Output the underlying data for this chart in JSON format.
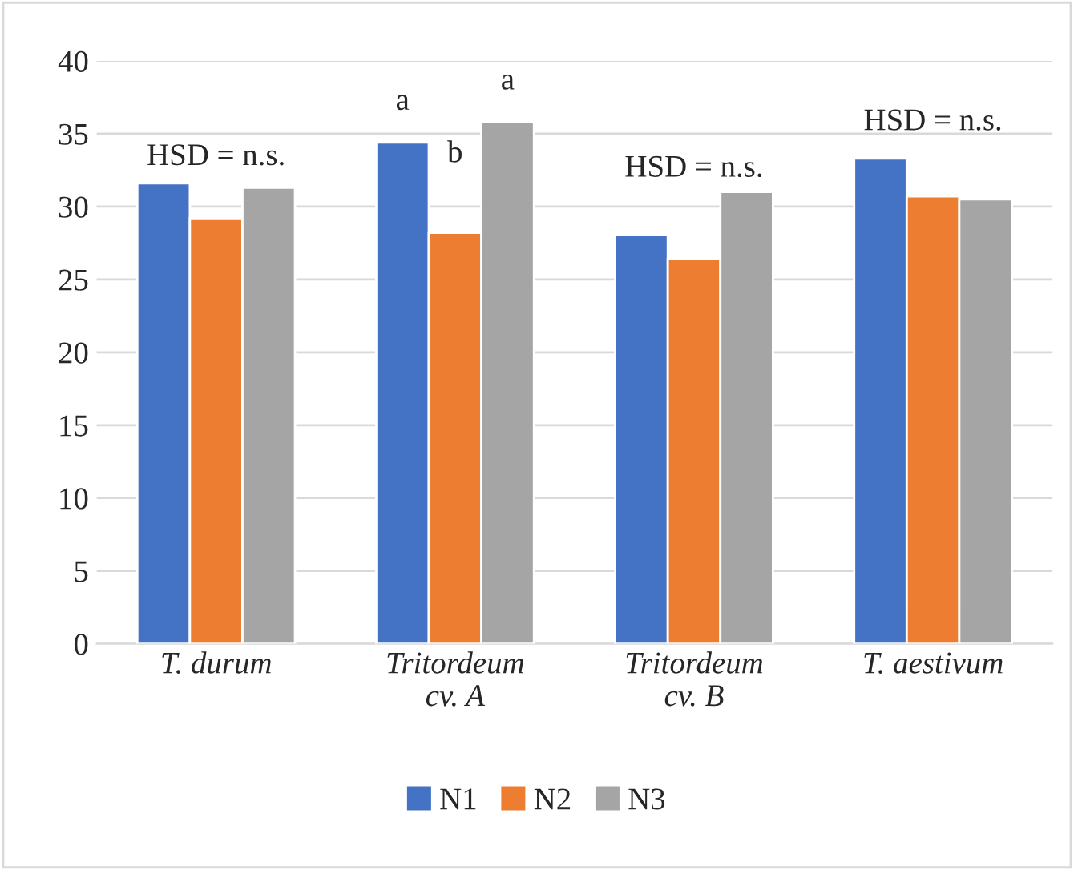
{
  "chart_data": {
    "type": "bar",
    "categories": [
      "T. durum",
      "Tritordeum\ncv. A",
      "Tritordeum\ncv. B",
      "T. aestivum"
    ],
    "series": [
      {
        "name": "N1",
        "color": "#4472c4",
        "values": [
          31.6,
          34.4,
          28.1,
          33.3
        ]
      },
      {
        "name": "N2",
        "color": "#ed7d31",
        "values": [
          29.2,
          28.2,
          26.4,
          30.7
        ]
      },
      {
        "name": "N3",
        "color": "#a5a5a5",
        "values": [
          31.3,
          35.8,
          31.0,
          30.5
        ]
      }
    ],
    "ylim": [
      0,
      40
    ],
    "yticks": [
      0,
      5,
      10,
      15,
      20,
      25,
      30,
      35,
      40
    ],
    "grid": "y",
    "legend": "bottom",
    "annotations": [
      "HSD = n.s.",
      "a",
      "b",
      "a",
      "HSD = n.s.",
      "HSD = n.s."
    ]
  }
}
